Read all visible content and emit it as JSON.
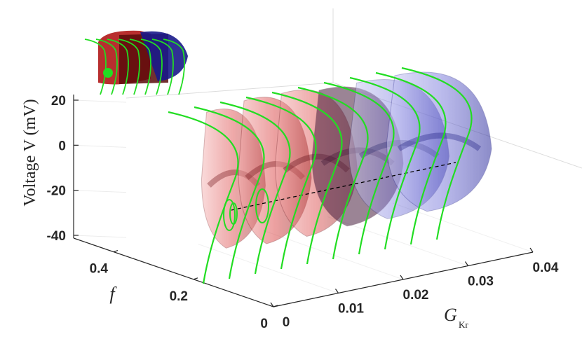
{
  "chart_data": {
    "type": "3d-surface",
    "title": "",
    "colors": {
      "red_surface": "#c8242a",
      "red_dark": "#6e0b10",
      "blue_surface": "#1e1ea8",
      "blue_dark": "#2a2a6e",
      "trajectory": "#22dd22",
      "equilibrium_line": "#000000",
      "axis": "#262626",
      "grid": "#e6e6e6"
    },
    "axes": {
      "z": {
        "label": "Voltage V (mV)",
        "range": [
          -45,
          25
        ],
        "ticks": [
          {
            "value": 20,
            "label": "20"
          },
          {
            "value": 0,
            "label": "0"
          },
          {
            "value": -20,
            "label": "-20"
          },
          {
            "value": -40,
            "label": "-40"
          }
        ]
      },
      "y": {
        "label": "f",
        "range": [
          0,
          0.5
        ],
        "ticks": [
          {
            "value": 0.4,
            "label": "0.4"
          },
          {
            "value": 0.2,
            "label": "0.2"
          },
          {
            "value": 0,
            "label": "0"
          }
        ]
      },
      "x": {
        "label_main": "G",
        "label_sub": "Kr",
        "range": [
          0,
          0.04
        ],
        "ticks": [
          {
            "value": 0,
            "label": "0"
          },
          {
            "value": 0.01,
            "label": "0.01"
          },
          {
            "value": 0.02,
            "label": "0.02"
          },
          {
            "value": 0.03,
            "label": "0.03"
          },
          {
            "value": 0.04,
            "label": "0.04"
          }
        ]
      }
    },
    "green_trajectory_gk_values": [
      0.0,
      0.004,
      0.008,
      0.012,
      0.016,
      0.02,
      0.024,
      0.028,
      0.032,
      0.036
    ],
    "equilibrium_branch": {
      "style": "dashed",
      "gk_range": [
        0.005,
        0.04
      ],
      "voltage_mV": -30
    }
  }
}
